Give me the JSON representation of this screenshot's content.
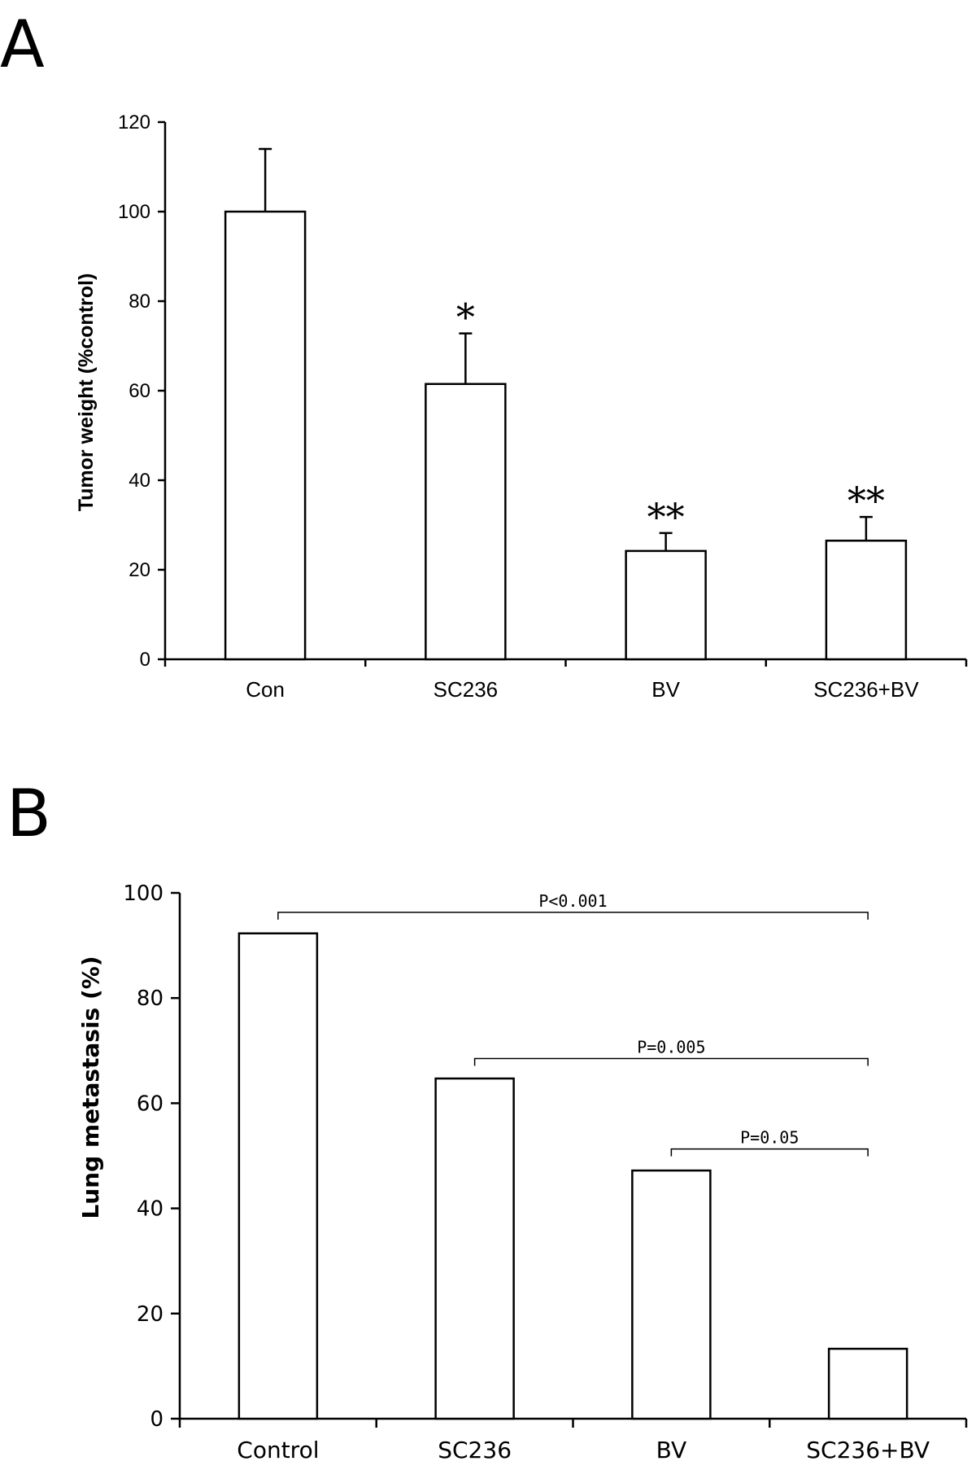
{
  "chart_data": [
    {
      "panel": "A",
      "type": "bar",
      "categories": [
        "Con",
        "SC236",
        "BV",
        "SC236+BV"
      ],
      "values": [
        100,
        61.5,
        24.2,
        26.5
      ],
      "errors": [
        14,
        11.3,
        4,
        5.3
      ],
      "significance": [
        "",
        "*",
        "**",
        "**"
      ],
      "ylabel": "Tumor weight (%control)",
      "xlabel": "",
      "ylim": [
        0,
        120
      ],
      "yticks": [
        0,
        20,
        40,
        60,
        80,
        100,
        120
      ],
      "grid": false
    },
    {
      "panel": "B",
      "type": "bar",
      "categories": [
        "Control",
        "SC236",
        "BV",
        "SC236+BV"
      ],
      "values": [
        92.3,
        64.7,
        47.2,
        13.3
      ],
      "ylabel": "Lung metastasis (%)",
      "xlabel": "",
      "ylim": [
        0,
        100
      ],
      "yticks": [
        0,
        20,
        40,
        60,
        80,
        100
      ],
      "grid": false,
      "comparisons": [
        {
          "from": 0,
          "to": 3,
          "label": "P<0.001",
          "level": 96.3
        },
        {
          "from": 1,
          "to": 3,
          "label": "P=0.005",
          "level": 68.5
        },
        {
          "from": 2,
          "to": 3,
          "label": "P=0.05",
          "level": 51.3
        }
      ]
    }
  ]
}
